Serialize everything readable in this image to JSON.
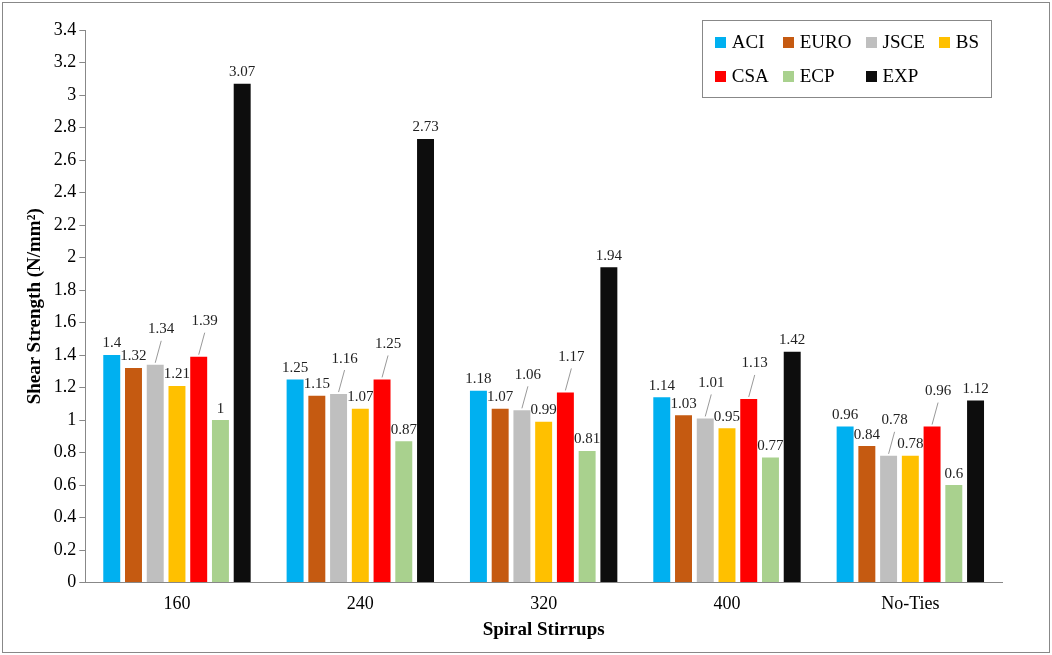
{
  "chart_data": {
    "type": "bar",
    "xlabel": "Spiral Stirrups",
    "ylabel": "Shear Strength (N/mm²)",
    "categories": [
      "160",
      "240",
      "320",
      "400",
      "No-Ties"
    ],
    "series": [
      {
        "name": "ACI",
        "color": "#00b0f0",
        "values": [
          1.4,
          1.25,
          1.18,
          1.14,
          0.96
        ]
      },
      {
        "name": "EURO",
        "color": "#c55a11",
        "values": [
          1.32,
          1.15,
          1.07,
          1.03,
          0.84
        ]
      },
      {
        "name": "JSCE",
        "color": "#bfbfbf",
        "values": [
          1.34,
          1.16,
          1.06,
          1.01,
          0.78
        ]
      },
      {
        "name": "BS",
        "color": "#ffc000",
        "values": [
          1.21,
          1.07,
          0.99,
          0.95,
          0.78
        ]
      },
      {
        "name": "CSA",
        "color": "#ff0000",
        "values": [
          1.39,
          1.25,
          1.17,
          1.13,
          0.96
        ]
      },
      {
        "name": "ECP",
        "color": "#a9d18e",
        "values": [
          1,
          0.87,
          0.81,
          0.77,
          0.6
        ]
      },
      {
        "name": "EXP",
        "color": "#0d0d0d",
        "values": [
          3.07,
          2.73,
          1.94,
          1.42,
          1.12
        ]
      }
    ],
    "ylim": [
      0,
      3.4
    ],
    "yticks": [
      0,
      0.2,
      0.4,
      0.6,
      0.8,
      1,
      1.2,
      1.4,
      1.6,
      1.8,
      2,
      2.2,
      2.4,
      2.6,
      2.8,
      3,
      3.2,
      3.4
    ],
    "grid": false,
    "legend": "top right",
    "data_labels": true
  }
}
